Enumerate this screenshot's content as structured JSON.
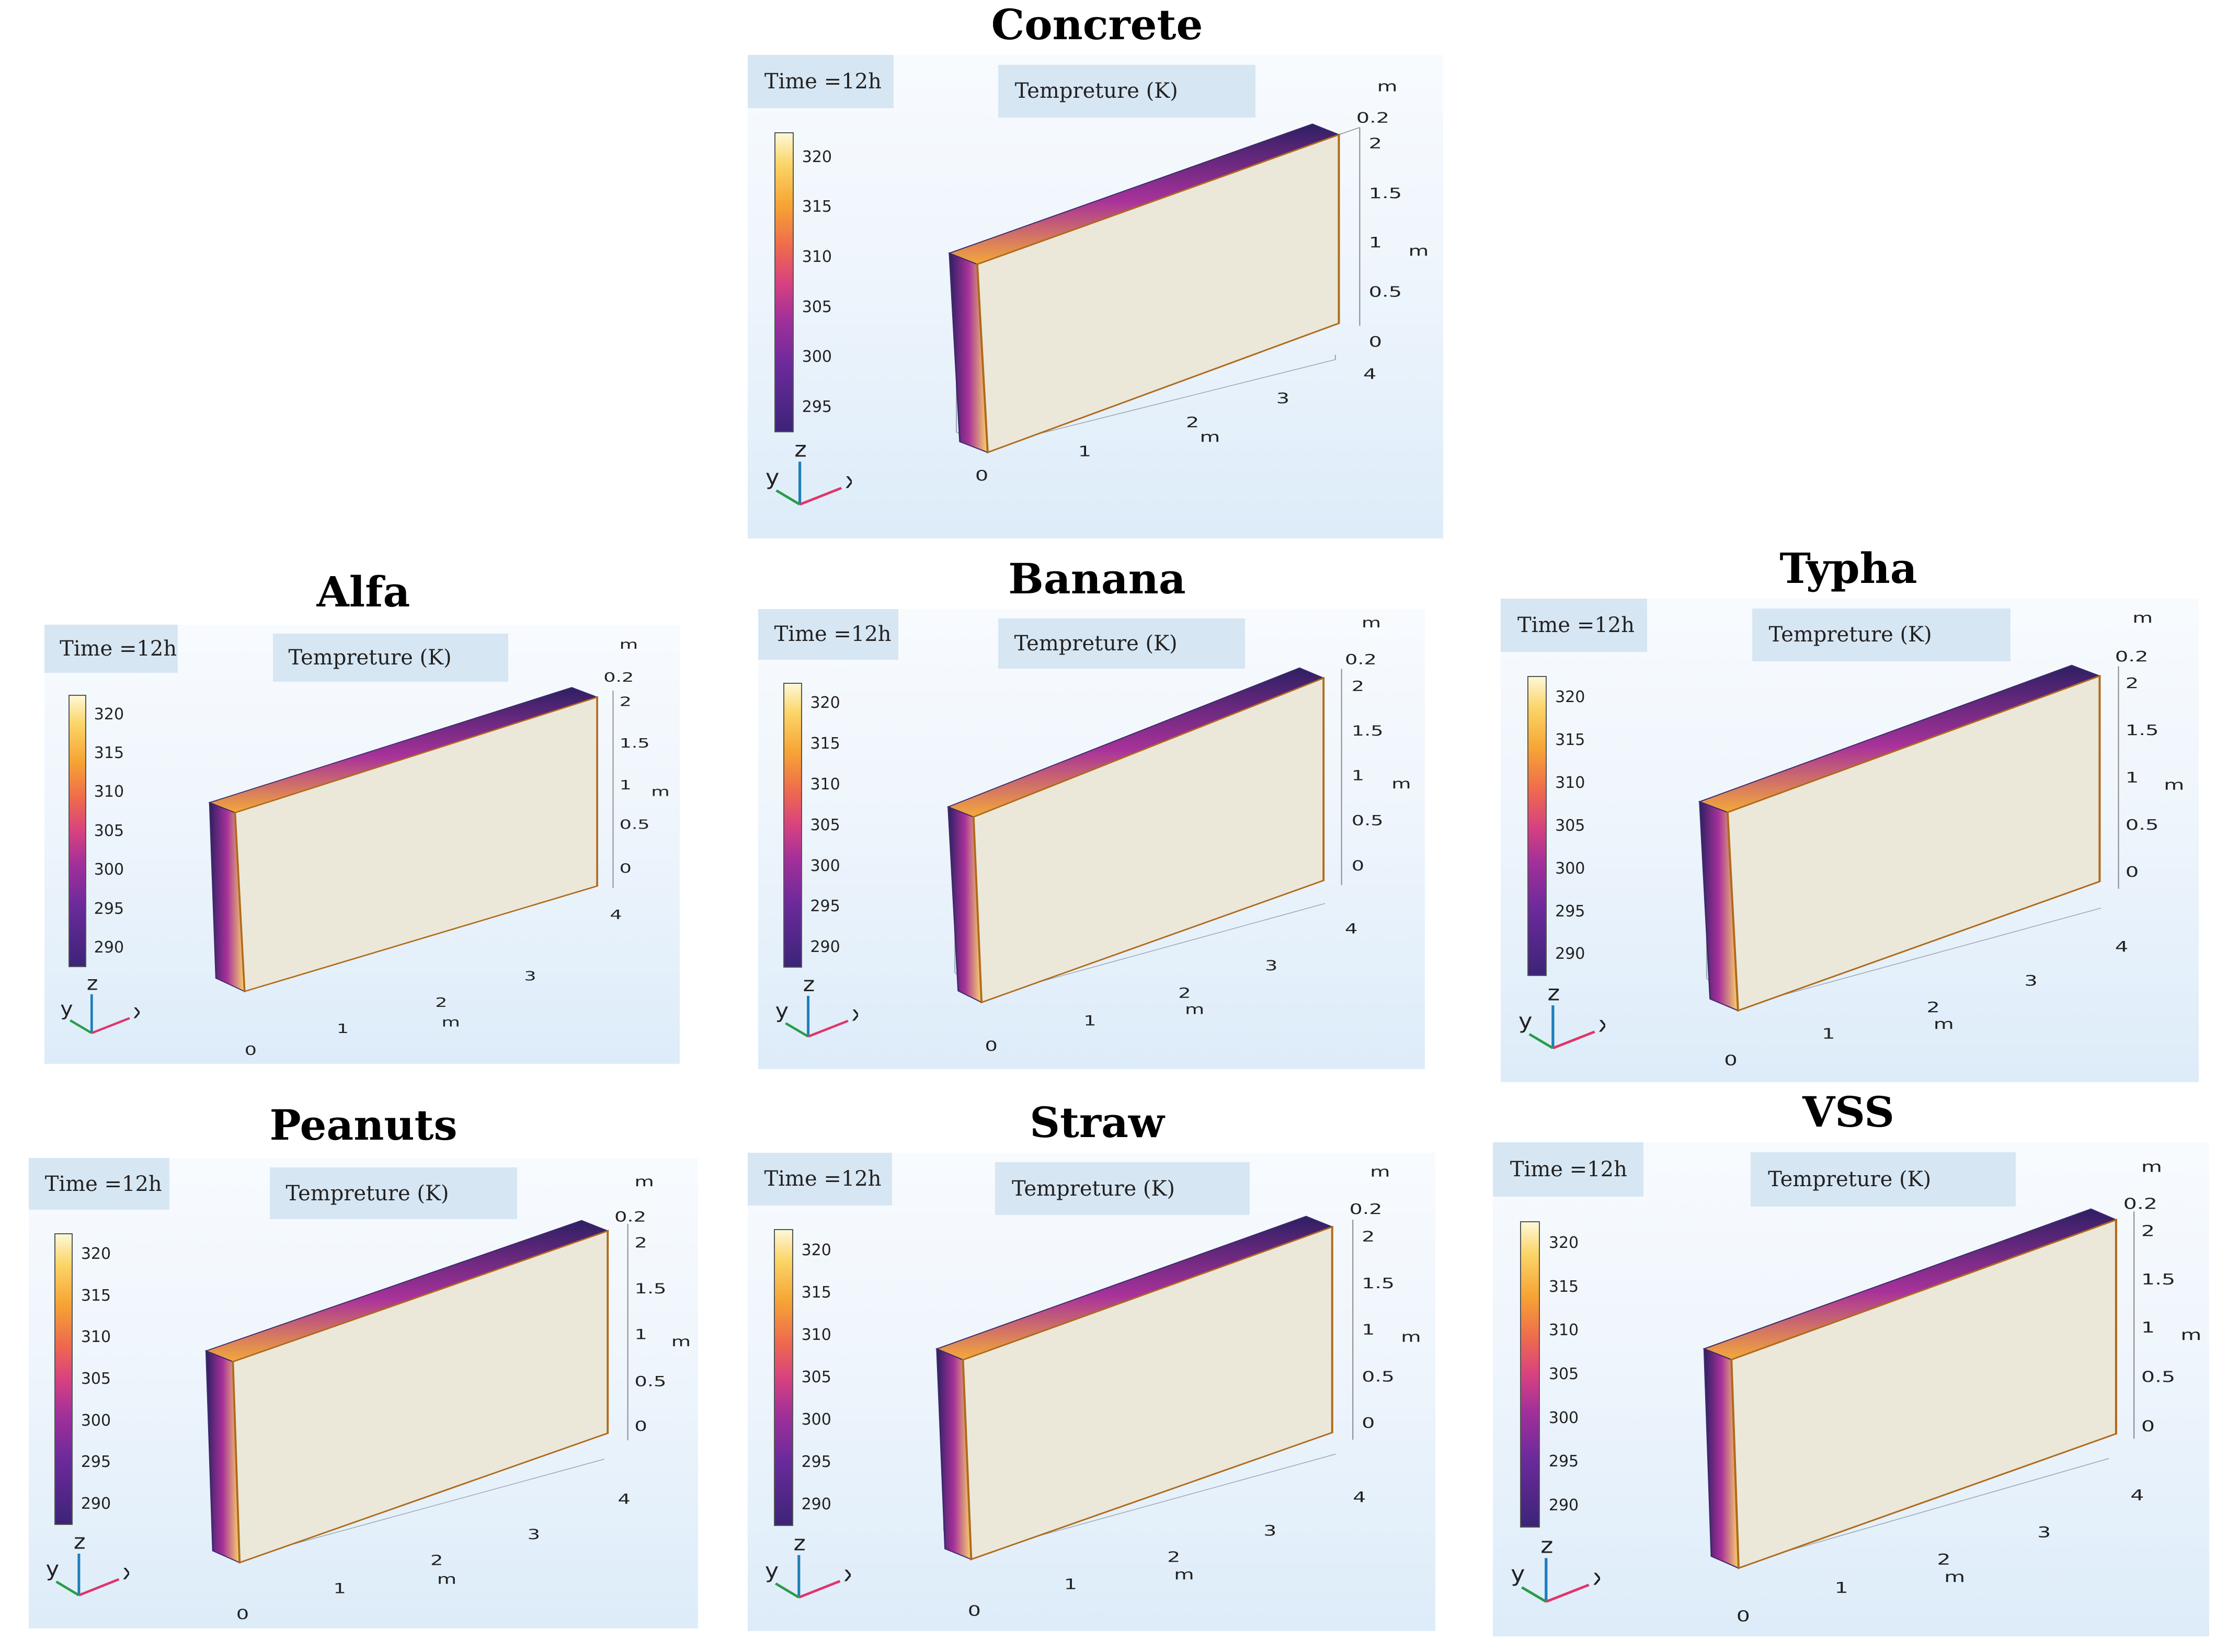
{
  "panels": [
    {
      "name": "Concrete",
      "time": "Time =12h",
      "temp_label": "Tempreture (K)",
      "ticks": [
        "320",
        "315",
        "310",
        "305",
        "300",
        "295"
      ]
    },
    {
      "name": "Alfa",
      "time": "Time =12h",
      "temp_label": "Tempreture (K)",
      "ticks": [
        "320",
        "315",
        "310",
        "305",
        "300",
        "295",
        "290"
      ]
    },
    {
      "name": "Banana",
      "time": "Time =12h",
      "temp_label": "Tempreture (K)",
      "ticks": [
        "320",
        "315",
        "310",
        "305",
        "300",
        "295",
        "290"
      ]
    },
    {
      "name": "Typha",
      "time": "Time =12h",
      "temp_label": "Tempreture (K)",
      "ticks": [
        "320",
        "315",
        "310",
        "305",
        "300",
        "295",
        "290"
      ]
    },
    {
      "name": "Peanuts",
      "time": "Time =12h",
      "temp_label": "Tempreture (K)",
      "ticks": [
        "320",
        "315",
        "310",
        "305",
        "300",
        "295",
        "290"
      ]
    },
    {
      "name": "Straw",
      "time": "Time =12h",
      "temp_label": "Tempreture (K)",
      "ticks": [
        "320",
        "315",
        "310",
        "305",
        "300",
        "295",
        "290"
      ]
    },
    {
      "name": "VSS",
      "time": "Time =12h",
      "temp_label": "Tempreture (K)",
      "ticks": [
        "320",
        "315",
        "310",
        "305",
        "300",
        "295",
        "290"
      ]
    }
  ],
  "axes": {
    "unit": "m",
    "x_ticks": [
      "0",
      "1",
      "2",
      "3",
      "4"
    ],
    "z_ticks": [
      "0",
      "0.5",
      "1",
      "1.5",
      "2"
    ],
    "y_tick": "0.2",
    "triad": [
      "x",
      "y",
      "z"
    ]
  },
  "colors": {
    "face": "#ebe8da",
    "edge_dark": "#2e1f63",
    "edge_mid": "#a8329a",
    "edge_hot": "#f4a93a"
  }
}
